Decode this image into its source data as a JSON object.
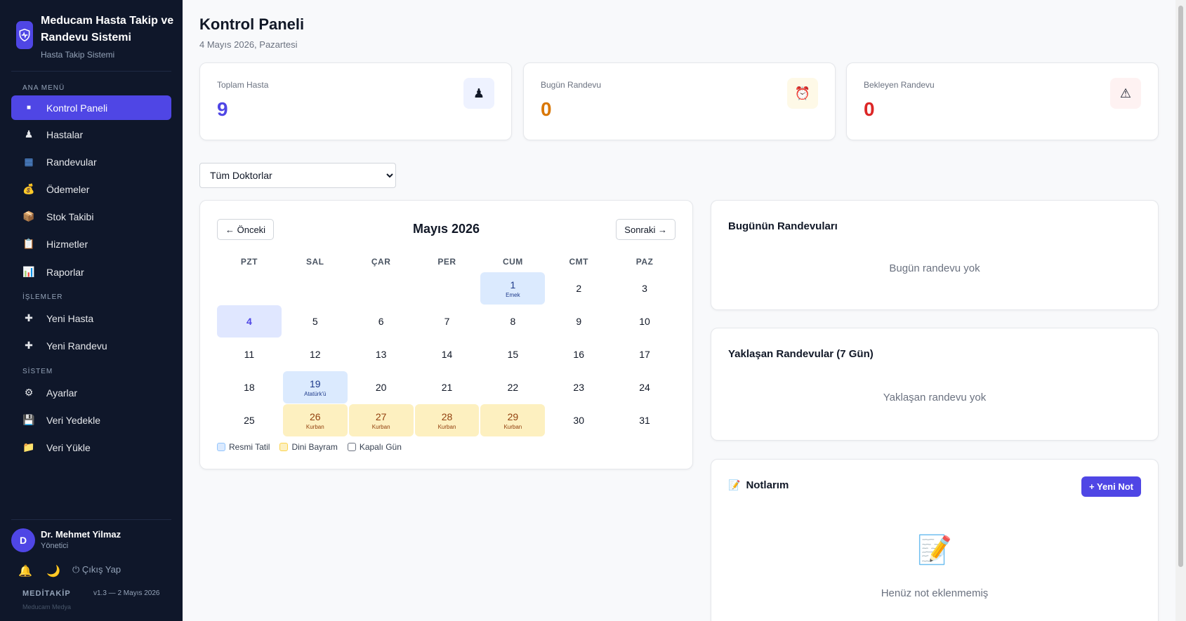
{
  "sidebar": {
    "brand": {
      "title": "Meducam Hasta Takip ve Randevu Sistemi",
      "subtitle": "Hasta Takip Sistemi"
    },
    "sections": {
      "main": "ANA MENÜ",
      "actions": "İŞLEMLER",
      "system": "SİSTEM"
    },
    "items": [
      {
        "label": "Kontrol Paneli",
        "icon": "■",
        "icon_name": "dashboard-icon"
      },
      {
        "label": "Hastalar",
        "icon": "♟",
        "icon_name": "patients-icon"
      },
      {
        "label": "Randevular",
        "icon": "▦",
        "icon_name": "calendar-icon"
      },
      {
        "label": "Ödemeler",
        "icon": "💰",
        "icon_name": "money-bag-icon"
      },
      {
        "label": "Stok Takibi",
        "icon": "📦",
        "icon_name": "package-icon"
      },
      {
        "label": "Hizmetler",
        "icon": "📋",
        "icon_name": "clipboard-icon"
      },
      {
        "label": "Raporlar",
        "icon": "📊",
        "icon_name": "chart-icon"
      },
      {
        "label": "Yeni Hasta",
        "icon": "✚",
        "icon_name": "plus-icon"
      },
      {
        "label": "Yeni Randevu",
        "icon": "✚",
        "icon_name": "plus-icon"
      },
      {
        "label": "Ayarlar",
        "icon": "⚙",
        "icon_name": "gear-icon"
      },
      {
        "label": "Veri Yedekle",
        "icon": "💾",
        "icon_name": "floppy-icon"
      },
      {
        "label": "Veri Yükle",
        "icon": "📁",
        "icon_name": "folder-icon"
      }
    ],
    "user": {
      "initial": "D",
      "name": "Dr. Mehmet Yilmaz",
      "role": "Yönetici"
    },
    "bell_icon": "🔔",
    "moon_icon": "🌙",
    "logout_label": "⏻ Çıkış Yap",
    "app_name": "MEDİTAKİP",
    "version": "v1.3 — 2 Mayıs 2026",
    "company": "Meducam Medya"
  },
  "header": {
    "title": "Kontrol Paneli",
    "date": "4 Mayıs 2026, Pazartesi"
  },
  "stats": [
    {
      "label": "Toplam Hasta",
      "value": "9",
      "icon": "♟",
      "color": "#4f46e5",
      "icon_bg": "#eef2ff"
    },
    {
      "label": "Bugün Randevu",
      "value": "0",
      "icon": "⏰",
      "color": "#d97706",
      "icon_bg": "#fef9e7"
    },
    {
      "label": "Bekleyen Randevu",
      "value": "0",
      "icon": "⚠",
      "color": "#dc2626",
      "icon_bg": "#fef2f2"
    }
  ],
  "doctor_filter": {
    "selected": "Tüm Doktorlar"
  },
  "calendar": {
    "prev_label": "← Önceki",
    "next_label": "Sonraki →",
    "month_label": "Mayıs 2026",
    "weekdays": [
      "PZT",
      "SAL",
      "ÇAR",
      "PER",
      "CUM",
      "CMT",
      "PAZ"
    ],
    "start_offset": 4,
    "days_in_month": 31,
    "today": 4,
    "holidays": [
      {
        "day": 1,
        "name": "Emek",
        "type": "resmi"
      },
      {
        "day": 19,
        "name": "Atatürk'ü",
        "type": "resmi"
      },
      {
        "day": 26,
        "name": "Kurban",
        "type": "dini"
      },
      {
        "day": 27,
        "name": "Kurban",
        "type": "dini"
      },
      {
        "day": 28,
        "name": "Kurban",
        "type": "dini"
      },
      {
        "day": 29,
        "name": "Kurban",
        "type": "dini"
      }
    ],
    "legend": [
      {
        "label": "Resmi Tatil",
        "bg": "#dbeafe",
        "border": "#93c5fd"
      },
      {
        "label": "Dini Bayram",
        "bg": "#fdf0c0",
        "border": "#fcd34d"
      },
      {
        "label": "Kapalı Gün",
        "bg": "#ffffff",
        "border": "#6b7280"
      }
    ]
  },
  "today_panel": {
    "title": "Bugünün Randevuları",
    "empty": "Bugün randevu yok"
  },
  "upcoming_panel": {
    "title": "Yaklaşan Randevular (7 Gün)",
    "empty": "Yaklaşan randevu yok"
  },
  "notes_panel": {
    "title_icon": "📝",
    "title": "Notlarım",
    "new_button": "+ Yeni Not",
    "empty_icon": "📝",
    "empty": "Henüz not eklenmemiş"
  }
}
